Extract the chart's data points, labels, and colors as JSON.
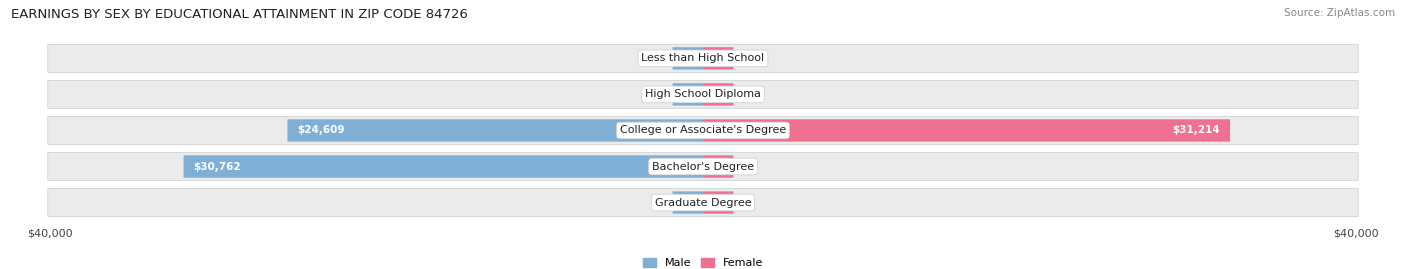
{
  "title": "EARNINGS BY SEX BY EDUCATIONAL ATTAINMENT IN ZIP CODE 84726",
  "source": "Source: ZipAtlas.com",
  "categories": [
    "Less than High School",
    "High School Diploma",
    "College or Associate's Degree",
    "Bachelor's Degree",
    "Graduate Degree"
  ],
  "male_values": [
    0,
    0,
    24609,
    30762,
    0
  ],
  "female_values": [
    0,
    0,
    31214,
    0,
    0
  ],
  "max_value": 40000,
  "zero_bar_width": 1800,
  "male_color": "#7fafd4",
  "female_color": "#f07090",
  "male_label": "Male",
  "female_label": "Female",
  "row_bg_color": "#ebebeb",
  "background_color": "#ffffff",
  "title_fontsize": 9.5,
  "source_fontsize": 7.5,
  "bar_label_fontsize": 7.5,
  "cat_label_fontsize": 8,
  "axis_label_fontsize": 8
}
